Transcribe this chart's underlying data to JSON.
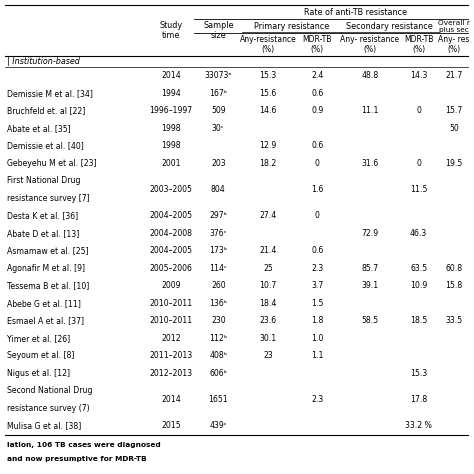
{
  "rows": [
    {
      "label": "",
      "study_time": "2014",
      "sample": "33073ᵃ",
      "pr_any": "15.3",
      "pr_mdr": "2.4",
      "sr_any": "48.8",
      "sr_mdr": "14.3",
      "overall": "21.7"
    },
    {
      "label": "Demissie M et al. [34]",
      "study_time": "1994",
      "sample": "167ᵇ",
      "pr_any": "15.6",
      "pr_mdr": "0.6",
      "sr_any": "",
      "sr_mdr": "",
      "overall": ""
    },
    {
      "label": "Bruchfeld et. al [22]",
      "study_time": "1996–1997",
      "sample": "509",
      "pr_any": "14.6",
      "pr_mdr": "0.9",
      "sr_any": "11.1",
      "sr_mdr": "0",
      "overall": "15.7"
    },
    {
      "label": "Abate et al. [35]",
      "study_time": "1998",
      "sample": "30ᶜ",
      "pr_any": "",
      "pr_mdr": "",
      "sr_any": "",
      "sr_mdr": "",
      "overall": "50"
    },
    {
      "label": "Demissie et al. [40]",
      "study_time": "1998",
      "sample": "",
      "pr_any": "12.9",
      "pr_mdr": "0.6",
      "sr_any": "",
      "sr_mdr": "",
      "overall": ""
    },
    {
      "label": "Gebeyehu M et al. [23]",
      "study_time": "2001",
      "sample": "203",
      "pr_any": "18.2",
      "pr_mdr": "0",
      "sr_any": "31.6",
      "sr_mdr": "0",
      "overall": "19.5"
    },
    {
      "label": "First National Drug\nresistance survey [7]",
      "study_time": "2003–2005",
      "sample": "804",
      "pr_any": "",
      "pr_mdr": "1.6",
      "sr_any": "",
      "sr_mdr": "11.5",
      "overall": ""
    },
    {
      "label": "Desta K et al. [36]",
      "study_time": "2004–2005",
      "sample": "297ᵇ",
      "pr_any": "27.4",
      "pr_mdr": "0",
      "sr_any": "",
      "sr_mdr": "",
      "overall": ""
    },
    {
      "label": "Abate D et al. [13]",
      "study_time": "2004–2008",
      "sample": "376ᶜ",
      "pr_any": "",
      "pr_mdr": "",
      "sr_any": "72.9",
      "sr_mdr": "46.3",
      "overall": ""
    },
    {
      "label": "Asmamaw et al. [25]",
      "study_time": "2004–2005",
      "sample": "173ᵇ",
      "pr_any": "21.4",
      "pr_mdr": "0.6",
      "sr_any": "",
      "sr_mdr": "",
      "overall": ""
    },
    {
      "label": "Agonafir M et al. [9]",
      "study_time": "2005–2006",
      "sample": "114ᶜ",
      "pr_any": "25",
      "pr_mdr": "2.3",
      "sr_any": "85.7",
      "sr_mdr": "63.5",
      "overall": "60.8"
    },
    {
      "label": "Tessema B et al. [10]",
      "study_time": "2009",
      "sample": "260",
      "pr_any": "10.7",
      "pr_mdr": "3.7",
      "sr_any": "39.1",
      "sr_mdr": "10.9",
      "overall": "15.8"
    },
    {
      "label": "Abebe G et al. [11]",
      "study_time": "2010–2011",
      "sample": "136ᵇ",
      "pr_any": "18.4",
      "pr_mdr": "1.5",
      "sr_any": "",
      "sr_mdr": "",
      "overall": ""
    },
    {
      "label": "Esmael A et al. [37]",
      "study_time": "2010–2011",
      "sample": "230",
      "pr_any": "23.6",
      "pr_mdr": "1.8",
      "sr_any": "58.5",
      "sr_mdr": "18.5",
      "overall": "33.5"
    },
    {
      "label": "Yimer et al. [26]",
      "study_time": "2012",
      "sample": "112ᵇ",
      "pr_any": "30.1",
      "pr_mdr": "1.0",
      "sr_any": "",
      "sr_mdr": "",
      "overall": ""
    },
    {
      "label": "Seyoum et al. [8]",
      "study_time": "2011–2013",
      "sample": "408ᵇ",
      "pr_any": "23",
      "pr_mdr": "1.1",
      "sr_any": "",
      "sr_mdr": "",
      "overall": ""
    },
    {
      "label": "Nigus et al. [12]",
      "study_time": "2012–2013",
      "sample": "606ᵇ",
      "pr_any": "",
      "pr_mdr": "",
      "sr_any": "",
      "sr_mdr": "15.3",
      "overall": ""
    },
    {
      "label": "Second National Drug\nresistance survey (7)",
      "study_time": "2014",
      "sample": "1651",
      "pr_any": "",
      "pr_mdr": "2.3",
      "sr_any": "",
      "sr_mdr": "17.8",
      "overall": ""
    },
    {
      "label": "Mulisa G et al. [38]",
      "study_time": "2015",
      "sample": "439ᶜ",
      "pr_any": "",
      "pr_mdr": "",
      "sr_any": "",
      "sr_mdr": "33.2 %",
      "overall": ""
    }
  ],
  "section_label": "Institution-based",
  "footnote1": "lation, 106 TB cases were diagnosed",
  "footnote2": "and now presumptive for MDR-TB",
  "bg_color": "#ffffff",
  "text_color": "#000000"
}
